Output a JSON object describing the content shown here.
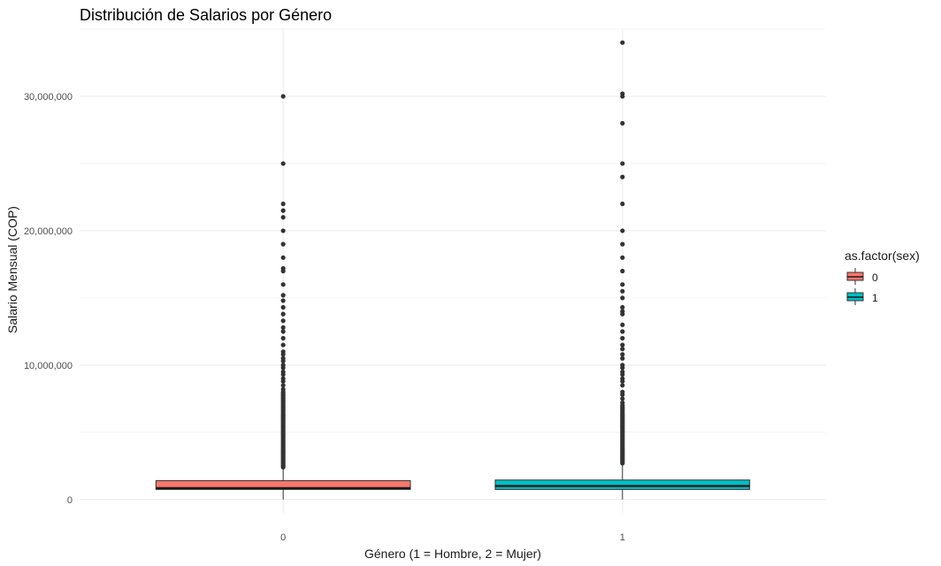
{
  "chart_data": {
    "type": "boxplot",
    "title": "Distribución de Salarios por Género",
    "xlabel": "Género (1 = Hombre, 2 = Mujer)",
    "ylabel": "Salario Mensual (COP)",
    "ylim": [
      -1000000,
      35000000
    ],
    "y_ticks": [
      0,
      10000000,
      20000000,
      30000000
    ],
    "y_tick_labels": [
      "0",
      "10,000,000",
      "20,000,000",
      "30,000,000"
    ],
    "grid": true,
    "legend": {
      "title": "as.factor(sex)",
      "position": "right",
      "entries": [
        {
          "label": "0",
          "color": "#F8766D"
        },
        {
          "label": "1",
          "color": "#00BFC4"
        }
      ]
    },
    "categories": [
      "0",
      "1"
    ],
    "series": [
      {
        "category": "0",
        "color": "#F8766D",
        "q1": 750000,
        "median": 850000,
        "q3": 1400000,
        "whisker_low": 0,
        "whisker_high": 2300000,
        "outliers": [
          2400000,
          2500000,
          2600000,
          2700000,
          2800000,
          2900000,
          3000000,
          3100000,
          3200000,
          3300000,
          3400000,
          3500000,
          3600000,
          3700000,
          3800000,
          3900000,
          4000000,
          4100000,
          4200000,
          4300000,
          4400000,
          4500000,
          4600000,
          4700000,
          4800000,
          4900000,
          5000000,
          5100000,
          5200000,
          5300000,
          5400000,
          5500000,
          5600000,
          5700000,
          5800000,
          5900000,
          6000000,
          6100000,
          6200000,
          6300000,
          6400000,
          6500000,
          6600000,
          6700000,
          6800000,
          6900000,
          7000000,
          7100000,
          7200000,
          7300000,
          7400000,
          7500000,
          7600000,
          7700000,
          7800000,
          7900000,
          8000000,
          8200000,
          8500000,
          8800000,
          9000000,
          9300000,
          9500000,
          9800000,
          10000000,
          10300000,
          10500000,
          10800000,
          11000000,
          11500000,
          12000000,
          12500000,
          12800000,
          13300000,
          13800000,
          14300000,
          14800000,
          15200000,
          16000000,
          17000000,
          17200000,
          18000000,
          19000000,
          20000000,
          21000000,
          21500000,
          22000000,
          25000000,
          30000000
        ]
      },
      {
        "category": "1",
        "color": "#00BFC4",
        "q1": 750000,
        "median": 1000000,
        "q3": 1450000,
        "whisker_low": 0,
        "whisker_high": 2600000,
        "outliers": [
          2700000,
          2800000,
          2900000,
          3000000,
          3100000,
          3200000,
          3300000,
          3400000,
          3500000,
          3600000,
          3700000,
          3800000,
          3900000,
          4000000,
          4100000,
          4200000,
          4300000,
          4400000,
          4500000,
          4600000,
          4700000,
          4800000,
          4900000,
          5000000,
          5100000,
          5200000,
          5300000,
          5400000,
          5500000,
          5600000,
          5700000,
          5800000,
          5900000,
          6000000,
          6100000,
          6200000,
          6300000,
          6400000,
          6500000,
          6600000,
          6700000,
          6800000,
          6900000,
          7000000,
          7200000,
          7500000,
          7800000,
          8000000,
          8500000,
          8800000,
          9000000,
          9300000,
          9500000,
          9800000,
          10000000,
          10500000,
          10800000,
          11200000,
          11500000,
          12000000,
          12500000,
          13000000,
          13800000,
          14000000,
          14300000,
          15000000,
          15500000,
          16000000,
          17000000,
          18000000,
          19000000,
          20000000,
          22000000,
          24000000,
          25000000,
          28000000,
          30000000,
          30200000,
          34000000
        ]
      }
    ]
  }
}
